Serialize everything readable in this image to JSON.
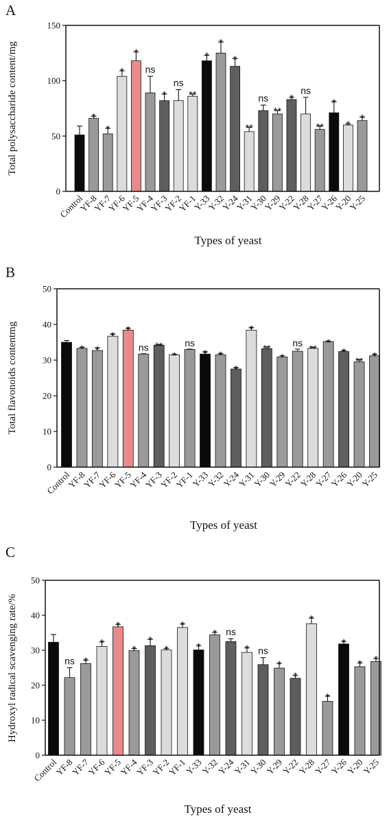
{
  "colors": {
    "black": "#0a0a0a",
    "pink": "#e88a8a",
    "light": "#dcdcdc",
    "mid": "#9a9a9a",
    "dark": "#5e5e5e"
  },
  "chart_data": [
    {
      "panel": "A",
      "type": "bar",
      "ylabel": "Total polysaccharide content/mg",
      "xlabel": "Types of yeast",
      "ylim": [
        0,
        150
      ],
      "yticks": [
        0,
        50,
        100,
        150
      ],
      "categories": [
        "Control",
        "YF-8",
        "YF-7",
        "YF-6",
        "YF-5",
        "YF-4",
        "YF-3",
        "YF-2",
        "YF-1",
        "Y-33",
        "Y-32",
        "Y-24",
        "Y-31",
        "Y-30",
        "Y-29",
        "Y-22",
        "Y-28",
        "Y-27",
        "Y-26",
        "Y-20",
        "Y-25"
      ],
      "values": [
        51,
        66,
        52,
        104,
        118,
        89,
        82,
        82,
        86,
        118,
        125,
        113,
        54,
        73,
        70,
        83,
        70,
        56,
        71,
        60,
        64
      ],
      "errors": [
        8,
        2,
        5,
        5,
        8,
        15,
        6,
        10,
        2,
        5,
        10,
        7,
        4,
        5,
        3,
        2,
        15,
        3,
        10,
        1,
        3
      ],
      "significance": [
        "",
        "*",
        "*",
        "*",
        "*",
        "ns",
        "*",
        "ns",
        "**",
        "*",
        "*",
        "*",
        "**",
        "ns",
        "**",
        "*",
        "ns",
        "**",
        "*",
        "*",
        "*"
      ],
      "fills": [
        "black",
        "mid",
        "mid",
        "light",
        "pink",
        "mid",
        "dark",
        "light",
        "light",
        "black",
        "mid",
        "dark",
        "light",
        "dark",
        "mid",
        "dark",
        "light",
        "mid",
        "black",
        "light",
        "mid"
      ],
      "grid": false
    },
    {
      "panel": "B",
      "type": "bar",
      "ylabel": "Total flavonoids contentmg",
      "xlabel": "Types of yeast",
      "ylim": [
        0,
        50
      ],
      "yticks": [
        0,
        10,
        20,
        30,
        40,
        50
      ],
      "categories": [
        "Control",
        "YF-8",
        "YF-7",
        "YF-6",
        "YF-5",
        "YF-4",
        "YF-3",
        "YF-2",
        "YF-1",
        "Y-33",
        "Y-32",
        "Y-24",
        "Y-31",
        "Y-30",
        "Y-29",
        "Y-22",
        "Y-28",
        "Y-27",
        "Y-26",
        "Y-20",
        "Y-25"
      ],
      "values": [
        35,
        33.3,
        32.7,
        36.7,
        38.4,
        31.7,
        34.2,
        31.5,
        33,
        31.7,
        31.5,
        27.5,
        38.4,
        33.2,
        30.9,
        32.5,
        33.3,
        35.2,
        32.4,
        29.5,
        31.2
      ],
      "errors": [
        0.5,
        0.3,
        0.7,
        0.6,
        0.5,
        0.1,
        0.1,
        0.1,
        0.1,
        0.6,
        0.3,
        0.4,
        0.7,
        0.5,
        0.3,
        0.6,
        0.3,
        0.1,
        0.3,
        0.6,
        0.4
      ],
      "significance": [
        "",
        "*",
        "*",
        "*",
        "*",
        "ns",
        "**",
        "*",
        "ns",
        "*",
        "*",
        "*",
        "*",
        "**",
        "*",
        "ns",
        "**",
        "*",
        "*",
        "**",
        "*"
      ],
      "fills": [
        "black",
        "mid",
        "mid",
        "light",
        "pink",
        "mid",
        "dark",
        "light",
        "mid",
        "black",
        "mid",
        "dark",
        "light",
        "dark",
        "mid",
        "mid",
        "light",
        "mid",
        "dark",
        "mid",
        "mid"
      ],
      "grid": false
    },
    {
      "panel": "C",
      "type": "bar",
      "ylabel": "Hydroxyl radical scavenging rate/%",
      "xlabel": "Types of yeast",
      "ylim": [
        0,
        50
      ],
      "yticks": [
        0,
        10,
        20,
        30,
        40,
        50
      ],
      "categories": [
        "Control",
        "YF-8",
        "YF-7",
        "YF-6",
        "YF-5",
        "YF-4",
        "YF-3",
        "YF-2",
        "YF-1",
        "Y-33",
        "Y-32",
        "Y-24",
        "Y-31",
        "Y-30",
        "Y-29",
        "Y-22",
        "Y-28",
        "Y-27",
        "Y-26",
        "Y-20",
        "Y-25"
      ],
      "values": [
        32.3,
        22.2,
        26.2,
        31.1,
        36.7,
        29.9,
        31.3,
        30.1,
        36.5,
        30.1,
        34.4,
        32.5,
        29.4,
        25.9,
        24.9,
        22,
        37.6,
        15.4,
        31.8,
        25.3,
        26.8
      ],
      "errors": [
        2.2,
        2.8,
        1,
        1.3,
        0.7,
        0.6,
        1.8,
        0.4,
        1,
        1.2,
        0.7,
        0.8,
        1.3,
        2,
        1.3,
        0.8,
        1.6,
        1.5,
        0.7,
        1.1,
        0.8
      ],
      "significance": [
        "",
        "ns",
        "*",
        "*",
        "*",
        "*",
        "*",
        "*",
        "*",
        "*",
        "*",
        "ns",
        "*",
        "ns",
        "*",
        "*",
        "*",
        "*",
        "*",
        "*",
        "*"
      ],
      "fills": [
        "black",
        "mid",
        "mid",
        "light",
        "pink",
        "mid",
        "dark",
        "light",
        "light",
        "black",
        "mid",
        "dark",
        "light",
        "dark",
        "mid",
        "dark",
        "light",
        "mid",
        "black",
        "mid",
        "mid"
      ],
      "grid": false
    }
  ]
}
